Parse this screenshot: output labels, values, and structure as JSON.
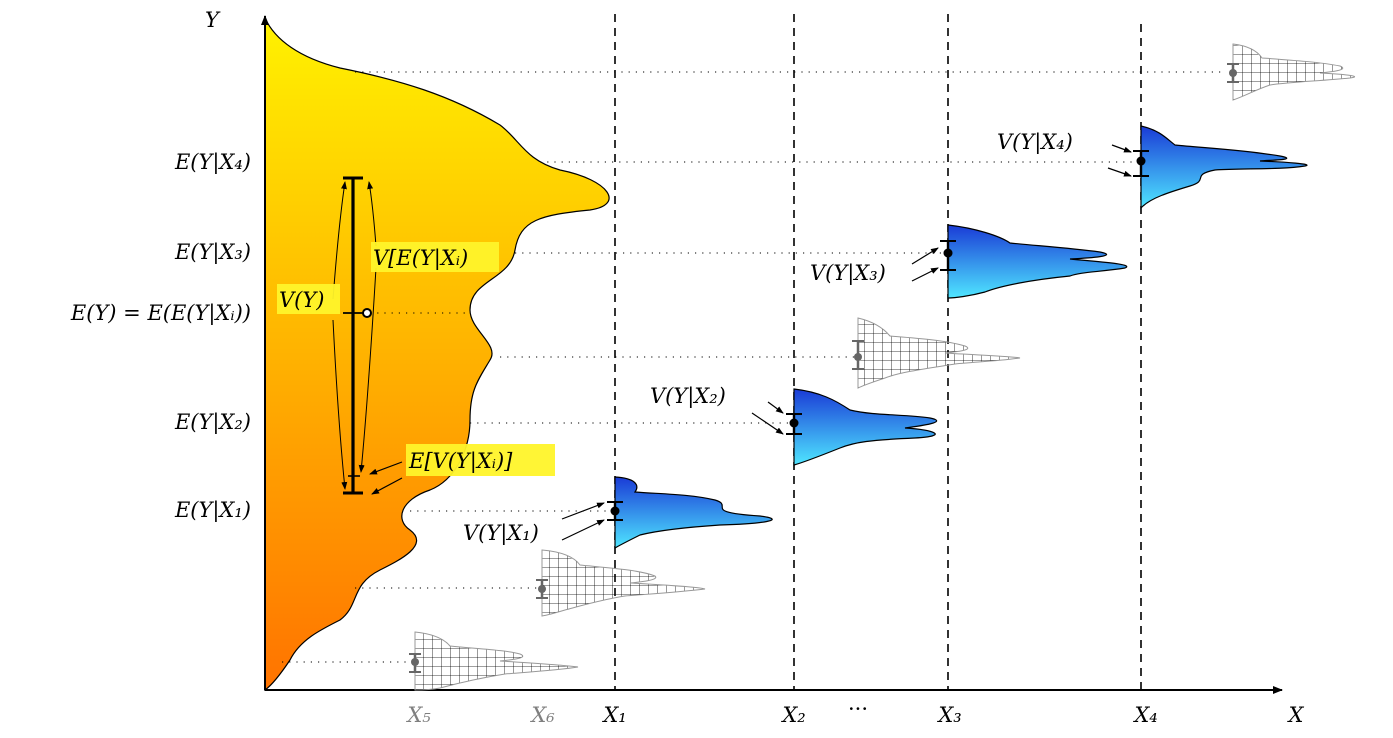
{
  "diagram": {
    "axes": {
      "x_label": "X",
      "y_label": "Y",
      "ellipsis": "···"
    },
    "x_ticks": [
      {
        "id": "x5",
        "label": "X₅",
        "muted": true
      },
      {
        "id": "x6",
        "label": "X₆",
        "muted": true
      },
      {
        "id": "x1",
        "label": "X₁",
        "muted": false
      },
      {
        "id": "x2",
        "label": "X₂",
        "muted": false
      },
      {
        "id": "x3",
        "label": "X₃",
        "muted": false
      },
      {
        "id": "x4",
        "label": "X₄",
        "muted": false
      }
    ],
    "y_ticks": {
      "e4": "E(Y|X₄)",
      "e3": "E(Y|X₃)",
      "ey": "E(Y) = E(E(Y|Xᵢ))",
      "e2": "E(Y|X₂)",
      "e1": "E(Y|X₁)"
    },
    "annotations": {
      "total_variance": "V(Y)",
      "variance_of_mean": "V[E(Y|Xᵢ)",
      "mean_of_variance": "E[V(Y|Xᵢ)]"
    },
    "conditional_labels": {
      "v1": "V(Y|X₁)",
      "v2": "V(Y|X₂)",
      "v3": "V(Y|X₃)",
      "v4": "V(Y|X₄)"
    },
    "colors": {
      "marginal_top": "#fff200",
      "marginal_bottom": "#ff7300",
      "conditional_top": "#1a3bd6",
      "conditional_bottom": "#4fe6ff",
      "highlight": "#fff42a",
      "muted": "#7f7f7f"
    }
  }
}
